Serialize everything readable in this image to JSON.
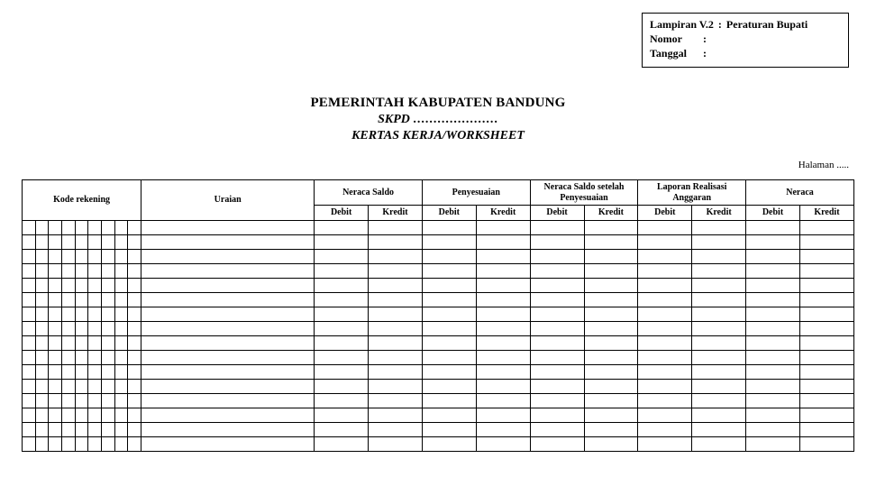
{
  "attachment": {
    "line1_label": "Lampiran V.2",
    "line1_sep": ":",
    "line1_value": "Peraturan Bupati",
    "line2_label": "Nomor",
    "line2_sep": ":",
    "line2_value": "",
    "line3_label": "Tanggal",
    "line3_sep": ":",
    "line3_value": ""
  },
  "header": {
    "line1": "PEMERINTAH KABUPATEN BANDUNG",
    "line2_prefix": "SKPD",
    "line2_dots": ".....................",
    "line3": "KERTAS KERJA/WORKSHEET"
  },
  "page_label": "Halaman .....",
  "columns": {
    "kode_rekening": "Kode rekening",
    "uraian": "Uraian",
    "groups": [
      {
        "title": "Neraca Saldo",
        "debit": "Debit",
        "kredit": "Kredit"
      },
      {
        "title": "Penyesuaian",
        "debit": "Debit",
        "kredit": "Kredit"
      },
      {
        "title": "Neraca Saldo setelah Penyesuaian",
        "debit": "Debit",
        "kredit": "Kredit"
      },
      {
        "title": "Laporan Realisasi Anggaran",
        "debit": "Debit",
        "kredit": "Kredit"
      },
      {
        "title": "Neraca",
        "debit": "Debit",
        "kredit": "Kredit"
      }
    ]
  },
  "layout": {
    "kode_sub_columns": 9,
    "empty_rows": 16
  },
  "style": {
    "border_color": "#000000",
    "background_color": "#ffffff",
    "header_font_size_pt": 11,
    "body_font_size_pt": 8
  }
}
